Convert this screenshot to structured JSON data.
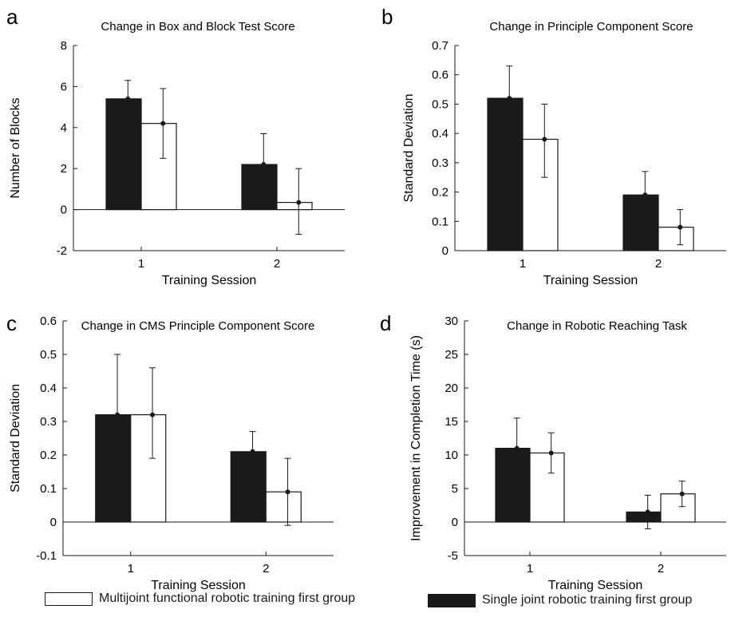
{
  "legend": [
    {
      "label": "Multijoint functional robotic training first group",
      "color": "#ffffff"
    },
    {
      "label": "Single joint robotic training first group",
      "color": "#1a1a1a"
    }
  ],
  "colors": {
    "single": "#1a1a1a",
    "multi": "#ffffff",
    "axis": "#1a1a1a"
  },
  "chart_data": [
    {
      "panel": "a",
      "type": "bar",
      "title": "Change in Box and Block Test Score",
      "xlabel": "Training Session",
      "ylabel": "Number of Blocks",
      "categories": [
        "1",
        "2"
      ],
      "ylim": [
        -2,
        8
      ],
      "yticks": [
        "-2",
        "0",
        "2",
        "4",
        "6",
        "8"
      ],
      "series": [
        {
          "name": "Single joint robotic training first group",
          "values": [
            5.4,
            2.2
          ],
          "err_low": [
            4.5,
            0.7
          ],
          "err_high": [
            6.3,
            3.7
          ]
        },
        {
          "name": "Multijoint functional robotic training first group",
          "values": [
            4.2,
            0.35
          ],
          "err_low": [
            2.5,
            -1.2
          ],
          "err_high": [
            5.9,
            2.0
          ]
        }
      ]
    },
    {
      "panel": "b",
      "type": "bar",
      "title": "Change in Principle Component Score",
      "xlabel": "Training Session",
      "ylabel": "Standard Deviation",
      "categories": [
        "1",
        "2"
      ],
      "ylim": [
        0,
        0.7
      ],
      "yticks": [
        "0",
        "0.1",
        "0.2",
        "0.3",
        "0.4",
        "0.5",
        "0.6",
        "0.7"
      ],
      "series": [
        {
          "name": "Single joint robotic training first group",
          "values": [
            0.52,
            0.19
          ],
          "err_low": [
            0.41,
            0.11
          ],
          "err_high": [
            0.63,
            0.27
          ]
        },
        {
          "name": "Multijoint functional robotic training first group",
          "values": [
            0.38,
            0.08
          ],
          "err_low": [
            0.25,
            0.02
          ],
          "err_high": [
            0.5,
            0.14
          ]
        }
      ]
    },
    {
      "panel": "c",
      "type": "bar",
      "title": "Change in CMS Principle Component Score",
      "xlabel": "Training Session",
      "ylabel": "Standard Deviation",
      "categories": [
        "1",
        "2"
      ],
      "ylim": [
        -0.1,
        0.6
      ],
      "yticks": [
        "-0.1",
        "0",
        "0.1",
        "0.2",
        "0.3",
        "0.4",
        "0.5",
        "0.6"
      ],
      "series": [
        {
          "name": "Single joint robotic training first group",
          "values": [
            0.32,
            0.21
          ],
          "err_low": [
            0.14,
            0.15
          ],
          "err_high": [
            0.5,
            0.27
          ]
        },
        {
          "name": "Multijoint functional robotic training first group",
          "values": [
            0.32,
            0.09
          ],
          "err_low": [
            0.19,
            -0.01
          ],
          "err_high": [
            0.46,
            0.19
          ]
        }
      ]
    },
    {
      "panel": "d",
      "type": "bar",
      "title": "Change in Robotic Reaching Task",
      "xlabel": "Training Session",
      "ylabel": "Improvement in Completion Time (s)",
      "categories": [
        "1",
        "2"
      ],
      "ylim": [
        -5,
        30
      ],
      "yticks": [
        "-5",
        "0",
        "5",
        "10",
        "15",
        "20",
        "25",
        "30"
      ],
      "series": [
        {
          "name": "Single joint robotic training first group",
          "values": [
            11,
            1.5
          ],
          "err_low": [
            6.5,
            -1
          ],
          "err_high": [
            15.5,
            4
          ]
        },
        {
          "name": "Multijoint functional robotic training first group",
          "values": [
            10.3,
            4.2
          ],
          "err_low": [
            7.3,
            2.3
          ],
          "err_high": [
            13.3,
            6.1
          ]
        }
      ]
    }
  ]
}
